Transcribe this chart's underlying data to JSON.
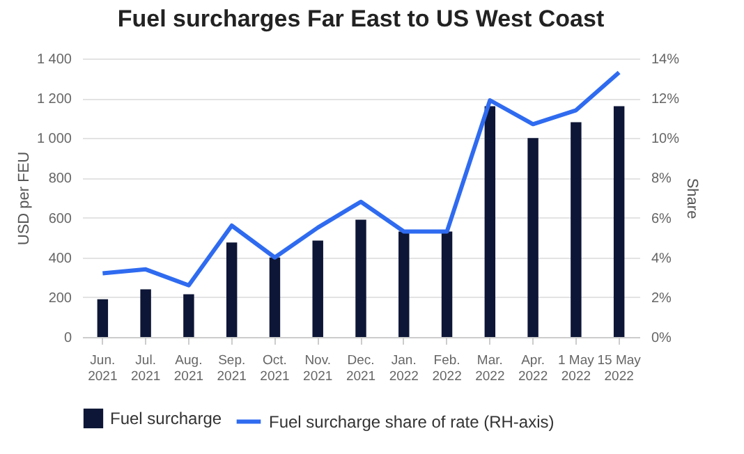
{
  "chart_data": {
    "type": "bar",
    "title": "Fuel surcharges Far East to US West Coast",
    "ylabel": "USD per FEU",
    "y2label": "Share",
    "categories": [
      "Jun.\n2021",
      "Jul.\n2021",
      "Aug.\n2021",
      "Sep.\n2021",
      "Oct.\n2021",
      "Nov.\n2021",
      "Dec.\n2021",
      "Jan.\n2022",
      "Feb.\n2022",
      "Mar.\n2022",
      "Apr.\n2022",
      "1 May\n2022",
      "15 May\n2022"
    ],
    "series": [
      {
        "name": "Fuel surcharge",
        "color": "#0d1636",
        "values": [
          190,
          240,
          215,
          475,
          400,
          485,
          590,
          530,
          530,
          1160,
          1000,
          1080,
          1160
        ]
      },
      {
        "name": "Fuel surcharge share of rate (RH-axis)",
        "type": "line",
        "axis": "y2",
        "color": "#2f6bf0",
        "values": [
          3.2,
          3.4,
          2.6,
          5.6,
          4.0,
          5.5,
          6.8,
          5.3,
          5.3,
          11.9,
          10.7,
          11.4,
          13.3
        ]
      }
    ],
    "ylim": [
      0,
      1400
    ],
    "yticks": [
      0,
      200,
      400,
      600,
      800,
      {
        "value": 1000,
        "label": "1 000"
      },
      {
        "value": 1200,
        "label": "1 200"
      },
      {
        "value": 1400,
        "label": "1 400"
      }
    ],
    "y2lim": [
      0,
      14
    ],
    "y2ticks": [
      {
        "value": 0,
        "label": "0%"
      },
      {
        "value": 2,
        "label": "2%"
      },
      {
        "value": 4,
        "label": "4%"
      },
      {
        "value": 6,
        "label": "6%"
      },
      {
        "value": 8,
        "label": "8%"
      },
      {
        "value": 10,
        "label": "10%"
      },
      {
        "value": 12,
        "label": "12%"
      },
      {
        "value": 14,
        "label": "14%"
      }
    ],
    "grid": "y",
    "legend": "bottom",
    "marker": "none",
    "line_style": "solid"
  }
}
